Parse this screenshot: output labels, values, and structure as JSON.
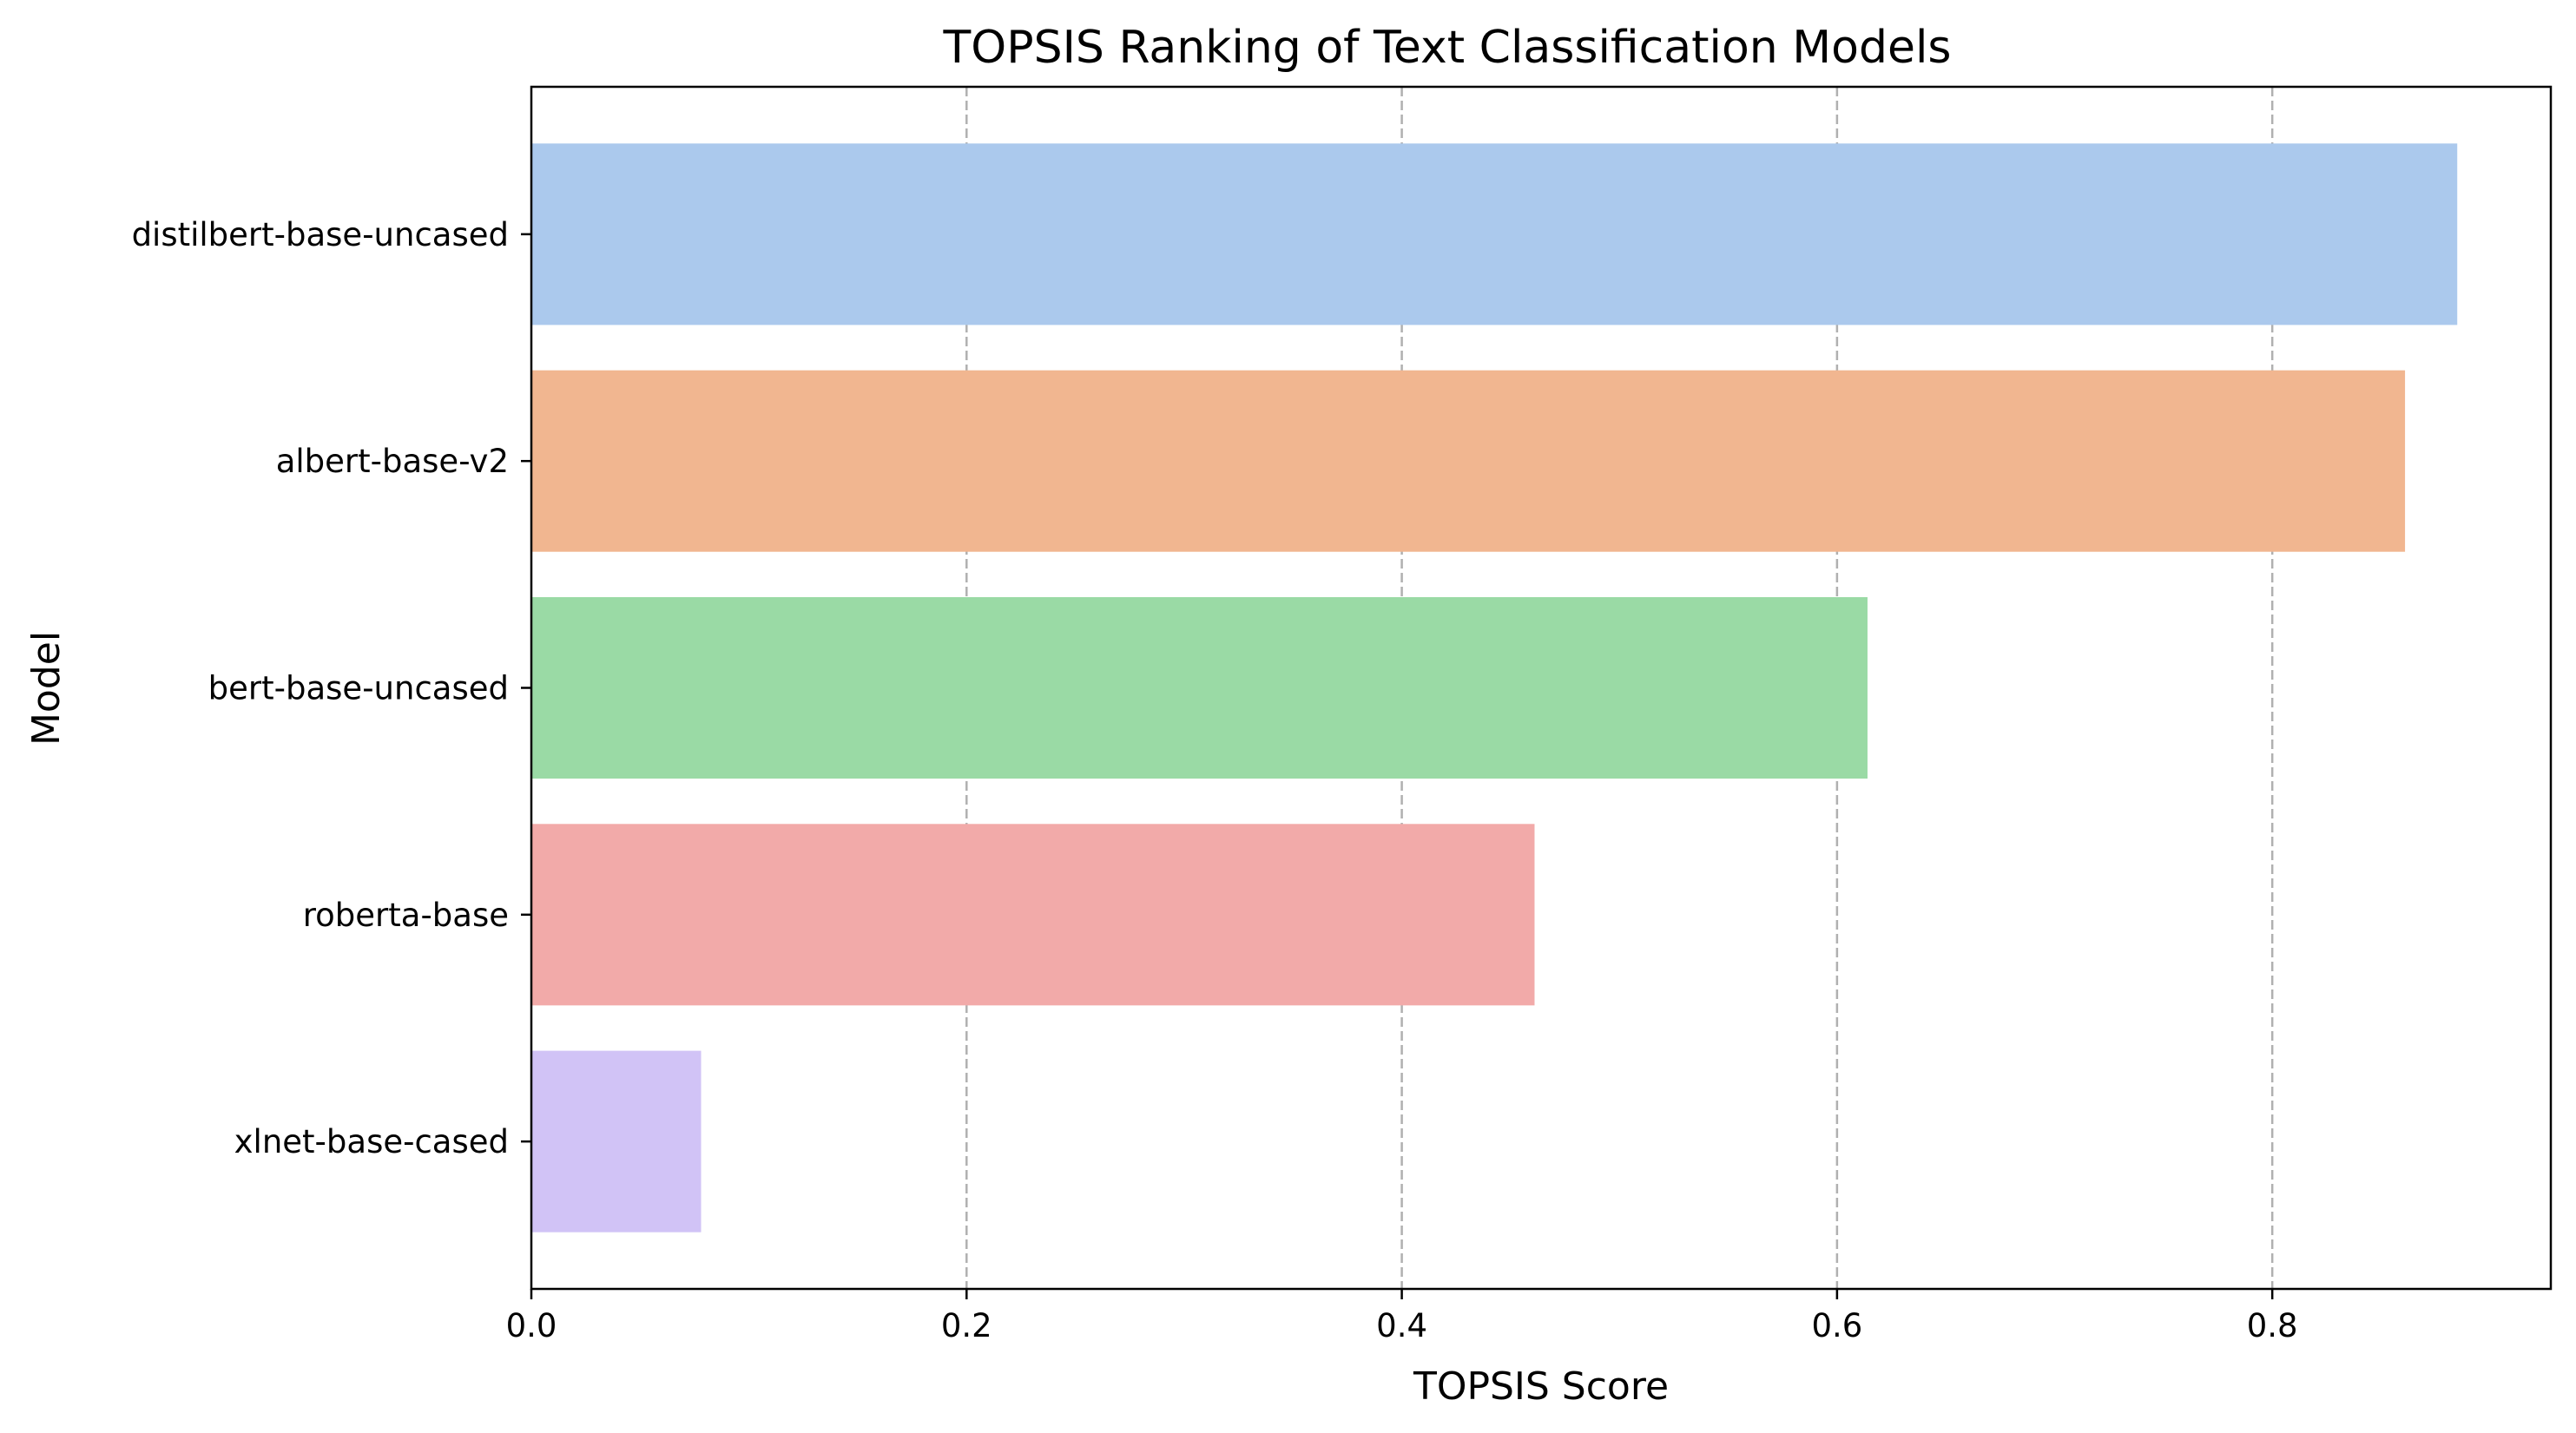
{
  "chart_data": {
    "type": "bar",
    "orientation": "horizontal",
    "title": "TOPSIS Ranking of Text Classification Models",
    "xlabel": "TOPSIS Score",
    "ylabel": "Model",
    "categories": [
      "distilbert-base-uncased",
      "albert-base-v2",
      "bert-base-uncased",
      "roberta-base",
      "xlnet-base-cased"
    ],
    "values": [
      0.885,
      0.861,
      0.614,
      0.461,
      0.078
    ],
    "colors": [
      "#abc9ed",
      "#f1b690",
      "#9adaa5",
      "#f2aaa9",
      "#d1c3f6"
    ],
    "xlim": [
      0,
      0.928
    ],
    "xticks": [
      0.0,
      0.2,
      0.4,
      0.6,
      0.8
    ],
    "xtick_labels": [
      "0.0",
      "0.2",
      "0.4",
      "0.6",
      "0.8"
    ],
    "grid": {
      "x": true,
      "y": false,
      "style": "dashed"
    },
    "legend": false
  }
}
